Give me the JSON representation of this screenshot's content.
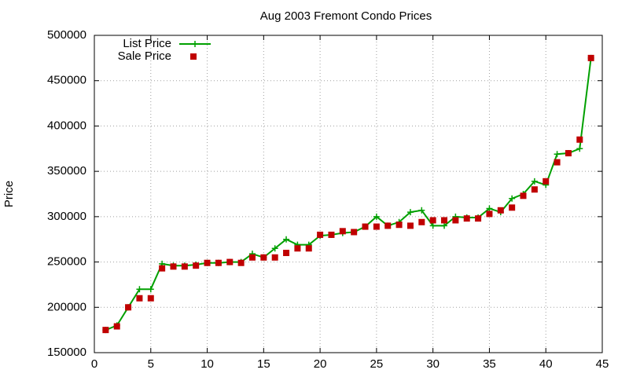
{
  "chart_data": {
    "type": "line",
    "title": "Aug 2003 Fremont Condo Prices",
    "y_label": "Price",
    "x": [
      1,
      2,
      3,
      4,
      5,
      6,
      7,
      8,
      9,
      10,
      11,
      12,
      13,
      14,
      15,
      16,
      17,
      18,
      19,
      20,
      21,
      22,
      23,
      24,
      25,
      26,
      27,
      28,
      29,
      30,
      31,
      32,
      33,
      34,
      35,
      36,
      37,
      38,
      39,
      40,
      41,
      42,
      43,
      44
    ],
    "series": [
      {
        "name": "List Price",
        "color": "#00a000",
        "mode": "lines+points",
        "values": [
          175000,
          180000,
          200000,
          220000,
          220000,
          248000,
          246000,
          246000,
          247000,
          249000,
          249000,
          250000,
          250000,
          259000,
          255000,
          265000,
          275000,
          269000,
          269000,
          279000,
          280000,
          282000,
          283000,
          289000,
          300000,
          290000,
          294000,
          305000,
          307000,
          290000,
          290000,
          300000,
          299000,
          299000,
          309000,
          305000,
          320000,
          325000,
          339000,
          335000,
          369000,
          370000,
          375000,
          475000
        ]
      },
      {
        "name": "Sale Price",
        "color": "#c00000",
        "mode": "points",
        "values": [
          175000,
          179000,
          200000,
          210000,
          210000,
          243000,
          245000,
          245000,
          246000,
          249000,
          249000,
          250000,
          249000,
          255000,
          255000,
          255000,
          260000,
          265000,
          265000,
          280000,
          280000,
          284000,
          283000,
          289000,
          289000,
          290000,
          291000,
          290000,
          294000,
          296000,
          296000,
          296000,
          298000,
          298000,
          303000,
          307000,
          310000,
          323000,
          330000,
          339000,
          360000,
          370000,
          385000,
          475000
        ]
      }
    ],
    "xlim": [
      0,
      45
    ],
    "xticks": [
      0,
      5,
      10,
      15,
      20,
      25,
      30,
      35,
      40,
      45
    ],
    "ylim": [
      150000,
      500000
    ],
    "yticks": [
      150000,
      200000,
      250000,
      300000,
      350000,
      400000,
      450000,
      500000
    ],
    "grid": true,
    "legend": "top-left"
  }
}
